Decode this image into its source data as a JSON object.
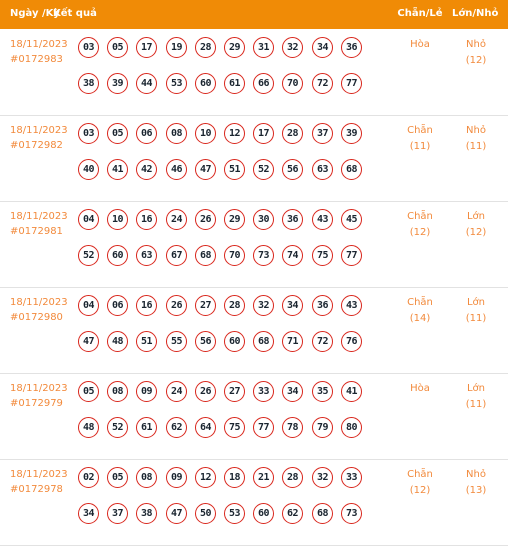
{
  "header": {
    "date_label": "Ngày /Kỳ",
    "result_label": "Kết quả",
    "even_odd_label": "Chẵn/Lẻ",
    "big_small_label": "Lớn/Nhỏ"
  },
  "rows": [
    {
      "date": "18/11/2023",
      "draw_id": "#0172983",
      "numbers": [
        "03",
        "05",
        "17",
        "19",
        "28",
        "29",
        "31",
        "32",
        "34",
        "36",
        "38",
        "39",
        "44",
        "53",
        "60",
        "61",
        "66",
        "70",
        "72",
        "77"
      ],
      "even_odd": "Hòa",
      "even_odd_count": "",
      "big_small": "Nhỏ",
      "big_small_count": "(12)"
    },
    {
      "date": "18/11/2023",
      "draw_id": "#0172982",
      "numbers": [
        "03",
        "05",
        "06",
        "08",
        "10",
        "12",
        "17",
        "28",
        "37",
        "39",
        "40",
        "41",
        "42",
        "46",
        "47",
        "51",
        "52",
        "56",
        "63",
        "68"
      ],
      "even_odd": "Chẵn",
      "even_odd_count": "(11)",
      "big_small": "Nhỏ",
      "big_small_count": "(11)"
    },
    {
      "date": "18/11/2023",
      "draw_id": "#0172981",
      "numbers": [
        "04",
        "10",
        "16",
        "24",
        "26",
        "29",
        "30",
        "36",
        "43",
        "45",
        "52",
        "60",
        "63",
        "67",
        "68",
        "70",
        "73",
        "74",
        "75",
        "77"
      ],
      "even_odd": "Chẵn",
      "even_odd_count": "(12)",
      "big_small": "Lớn",
      "big_small_count": "(12)"
    },
    {
      "date": "18/11/2023",
      "draw_id": "#0172980",
      "numbers": [
        "04",
        "06",
        "16",
        "26",
        "27",
        "28",
        "32",
        "34",
        "36",
        "43",
        "47",
        "48",
        "51",
        "55",
        "56",
        "60",
        "68",
        "71",
        "72",
        "76"
      ],
      "even_odd": "Chẵn",
      "even_odd_count": "(14)",
      "big_small": "Lớn",
      "big_small_count": "(11)"
    },
    {
      "date": "18/11/2023",
      "draw_id": "#0172979",
      "numbers": [
        "05",
        "08",
        "09",
        "24",
        "26",
        "27",
        "33",
        "34",
        "35",
        "41",
        "48",
        "52",
        "61",
        "62",
        "64",
        "75",
        "77",
        "78",
        "79",
        "80"
      ],
      "even_odd": "Hòa",
      "even_odd_count": "",
      "big_small": "Lớn",
      "big_small_count": "(11)"
    },
    {
      "date": "18/11/2023",
      "draw_id": "#0172978",
      "numbers": [
        "02",
        "05",
        "08",
        "09",
        "12",
        "18",
        "21",
        "28",
        "32",
        "33",
        "34",
        "37",
        "38",
        "47",
        "50",
        "53",
        "60",
        "62",
        "68",
        "73"
      ],
      "even_odd": "Chẵn",
      "even_odd_count": "(12)",
      "big_small": "Nhỏ",
      "big_small_count": "(13)"
    }
  ]
}
